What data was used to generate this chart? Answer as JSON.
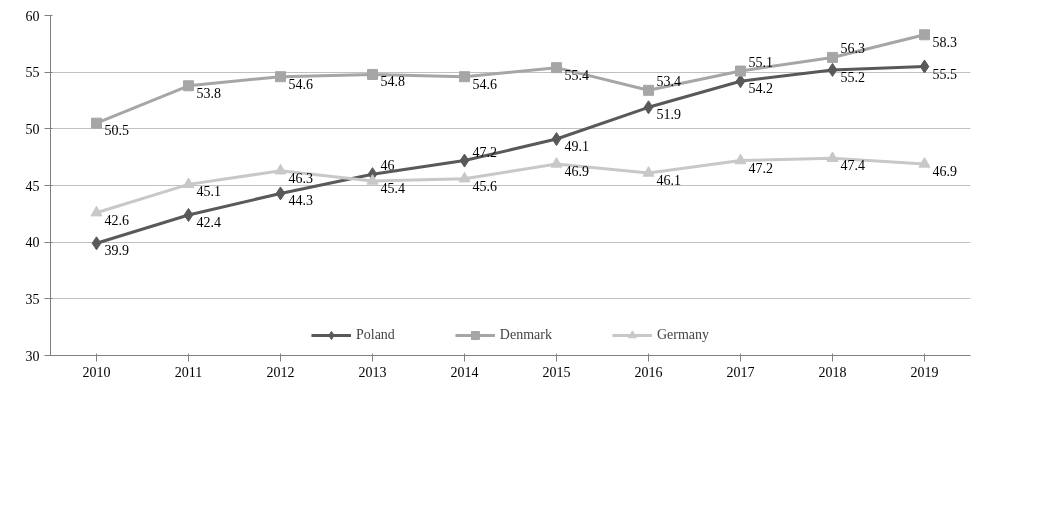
{
  "chart_data": {
    "type": "line",
    "categories": [
      "2010",
      "2011",
      "2012",
      "2013",
      "2014",
      "2015",
      "2016",
      "2017",
      "2018",
      "2019"
    ],
    "series": [
      {
        "name": "Poland",
        "color": "#595959",
        "marker": "diamond",
        "values": [
          39.9,
          42.4,
          44.3,
          46,
          47.2,
          49.1,
          51.9,
          54.2,
          55.2,
          55.5
        ]
      },
      {
        "name": "Denmark",
        "color": "#a6a6a6",
        "marker": "square",
        "values": [
          50.5,
          53.8,
          54.6,
          54.8,
          54.6,
          55.4,
          53.4,
          55.1,
          56.3,
          58.3
        ]
      },
      {
        "name": "Germany",
        "color": "#c8c8c8",
        "marker": "triangle",
        "values": [
          42.6,
          45.1,
          46.3,
          45.4,
          45.6,
          46.9,
          46.1,
          47.2,
          47.4,
          46.9
        ]
      }
    ],
    "ylim": [
      30,
      60
    ],
    "yticks": [
      30,
      35,
      40,
      45,
      50,
      55,
      60
    ],
    "grid": "y",
    "legend": "bottom",
    "data_labels": true,
    "line_style": "solid"
  }
}
